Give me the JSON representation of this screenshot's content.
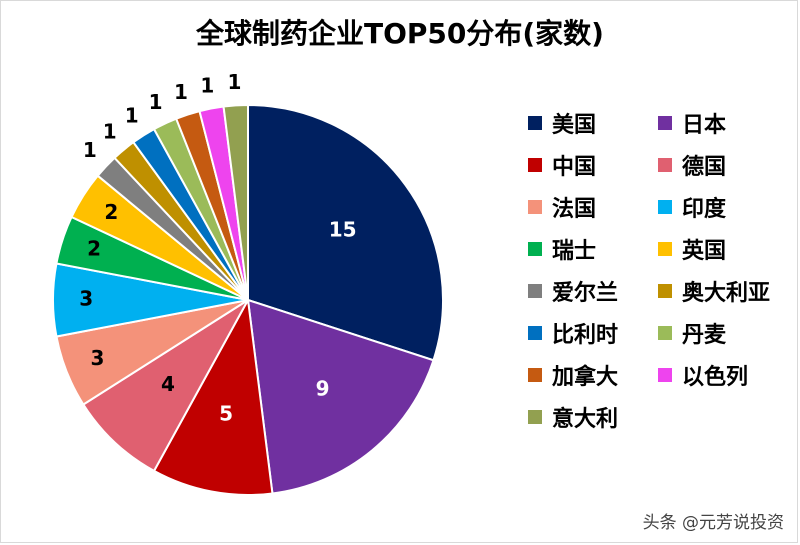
{
  "chart_data": {
    "type": "pie",
    "title": "全球制药企业TOP50分布(家数)",
    "categories": [
      "美国",
      "日本",
      "中国",
      "德国",
      "法国",
      "印度",
      "瑞士",
      "英国",
      "爱尔兰",
      "奥大利亚",
      "比利时",
      "丹麦",
      "加拿大",
      "以色列",
      "意大利"
    ],
    "values": [
      15,
      9,
      5,
      4,
      3,
      3,
      2,
      2,
      1,
      1,
      1,
      1,
      1,
      1,
      1
    ],
    "colors": [
      "#002060",
      "#7030a0",
      "#c00000",
      "#e06070",
      "#f4927a",
      "#00b0f0",
      "#00b050",
      "#ffc000",
      "#7f7f7f",
      "#bf9000",
      "#0070c0",
      "#9bbb59",
      "#c55a11",
      "#ee44ee",
      "#92a050"
    ],
    "legend_position": "right"
  },
  "watermark": "头条 @元芳说投资"
}
